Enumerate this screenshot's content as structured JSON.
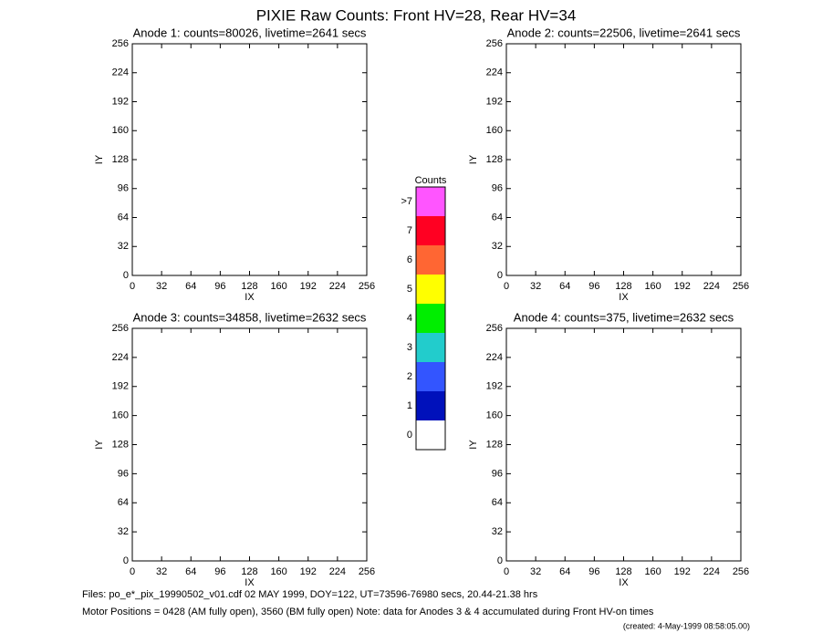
{
  "title": "PIXIE Raw Counts:  Front HV=28, Rear HV=34",
  "chart_data": [
    {
      "type": "heatmap",
      "title": "Anode 1: counts=80026, livetime=2641 secs",
      "xlabel": "IX",
      "ylabel": "IY",
      "xlim": [
        0,
        256
      ],
      "ylim": [
        0,
        256
      ],
      "xticks": [
        0,
        32,
        64,
        96,
        128,
        160,
        192,
        224,
        256
      ],
      "yticks": [
        0,
        32,
        64,
        96,
        128,
        160,
        192,
        224,
        256
      ]
    },
    {
      "type": "heatmap",
      "title": "Anode 2: counts=22506, livetime=2641 secs",
      "xlabel": "IX",
      "ylabel": "IY",
      "xlim": [
        0,
        256
      ],
      "ylim": [
        0,
        256
      ],
      "xticks": [
        0,
        32,
        64,
        96,
        128,
        160,
        192,
        224,
        256
      ],
      "yticks": [
        0,
        32,
        64,
        96,
        128,
        160,
        192,
        224,
        256
      ]
    },
    {
      "type": "heatmap",
      "title": "Anode 3: counts=34858, livetime=2632 secs",
      "xlabel": "IX",
      "ylabel": "IY",
      "xlim": [
        0,
        256
      ],
      "ylim": [
        0,
        256
      ],
      "xticks": [
        0,
        32,
        64,
        96,
        128,
        160,
        192,
        224,
        256
      ],
      "yticks": [
        0,
        32,
        64,
        96,
        128,
        160,
        192,
        224,
        256
      ]
    },
    {
      "type": "heatmap",
      "title": "Anode 4: counts=375, livetime=2632 secs",
      "xlabel": "IX",
      "ylabel": "IY",
      "xlim": [
        0,
        256
      ],
      "ylim": [
        0,
        256
      ],
      "xticks": [
        0,
        32,
        64,
        96,
        128,
        160,
        192,
        224,
        256
      ],
      "yticks": [
        0,
        32,
        64,
        96,
        128,
        160,
        192,
        224,
        256
      ]
    }
  ],
  "colorbar": {
    "title": "Counts",
    "levels": [
      "0",
      "1",
      "2",
      "3",
      "4",
      "5",
      "6",
      "7",
      ">7"
    ],
    "colors": [
      "#ffffff",
      "#0011bb",
      "#3355ff",
      "#22cccc",
      "#00ee00",
      "#ffff00",
      "#ff6633",
      "#ff0022",
      "#ff55ff"
    ]
  },
  "footer": [
    "Files: po_e*_pix_19990502_v01.cdf   02 MAY 1999, DOY=122, UT=73596-76980 secs, 20.44-21.38 hrs",
    "Motor Positions = 0428 (AM fully open), 3560 (BM fully open)    Note: data for Anodes 3 & 4 accumulated during Front HV-on times",
    "(created:  4-May-1999 08:58:05.00)"
  ]
}
